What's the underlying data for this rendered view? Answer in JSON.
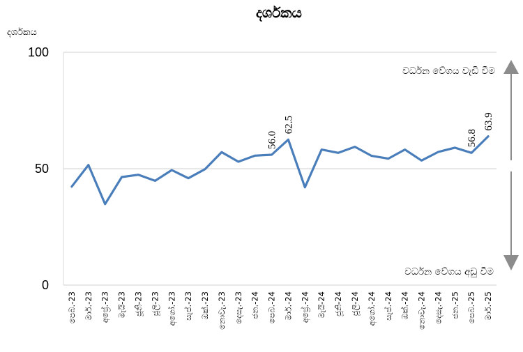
{
  "chart_data": {
    "type": "line",
    "title": "දර්ශකය",
    "ylabel": "දර්ශකය",
    "ylim": [
      0,
      100
    ],
    "yticks": [
      0,
      50,
      100
    ],
    "grid": "horizontal",
    "categories": [
      "පෙබ.-23",
      "මාර්.-23",
      "අප්‍රේ.-23",
      "මැයි-23",
      "ජූනි-23",
      "ජූලි-23",
      "අගෝ.-23",
      "සැප්.-23",
      "ඔක්.-23",
      "නොවැ.-23",
      "දෙසැ.-23",
      "ජන.-24",
      "පෙබ.-24",
      "මාර්.-24",
      "අප්‍රේ.-24",
      "මැයි-24",
      "ජූනි-24",
      "ජූලි-24",
      "අගෝ.-24",
      "සැප්.-24",
      "ඔක්.-24",
      "නොවැ.-24",
      "දෙසැ.-24",
      "ජන.-25",
      "පෙබ.-25",
      "මාර්.-25"
    ],
    "series": [
      {
        "color": "#4a7ebb",
        "values": [
          42.3,
          51.6,
          34.8,
          46.4,
          47.4,
          44.8,
          49.4,
          45.9,
          49.8,
          57.1,
          53.0,
          55.6,
          56.0,
          62.5,
          42.0,
          58.2,
          56.8,
          59.4,
          55.5,
          54.3,
          58.2,
          53.5,
          57.2,
          59.0,
          56.8,
          63.9
        ],
        "data_labels": [
          {
            "index": 12,
            "text": "56.0"
          },
          {
            "index": 13,
            "text": "62.5"
          },
          {
            "index": 24,
            "text": "56.8"
          },
          {
            "index": 25,
            "text": "63.9"
          }
        ]
      }
    ],
    "annotations": {
      "up": "වර්ධන වේගය වැඩි වීම",
      "down": "වර්ධන වේගය අඩු වීම",
      "threshold": 50,
      "arrow_color": "#8c8c8c"
    }
  }
}
